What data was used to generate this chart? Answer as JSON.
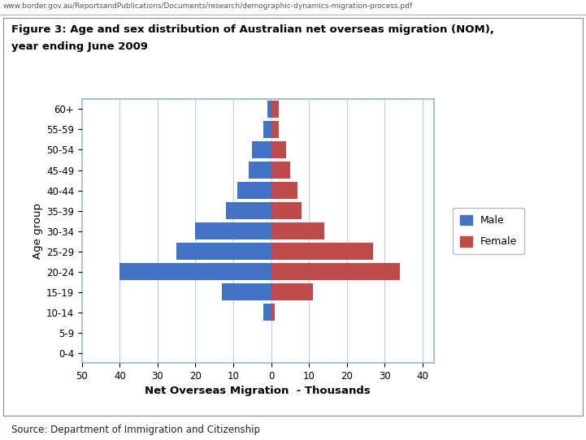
{
  "age_groups": [
    "0-4",
    "5-9",
    "10-14",
    "15-19",
    "20-24",
    "25-29",
    "30-34",
    "35-39",
    "40-44",
    "45-49",
    "50-54",
    "55-59",
    "60+"
  ],
  "male_values": [
    0,
    0,
    -2,
    -13,
    -40,
    -25,
    -20,
    -12,
    -9,
    -6,
    -5,
    -2,
    -1
  ],
  "female_values": [
    0,
    0,
    1,
    11,
    34,
    27,
    14,
    8,
    7,
    5,
    4,
    2,
    2
  ],
  "male_color": "#4472C4",
  "female_color": "#BE4B48",
  "xlabel": "Net Overseas Migration  - Thousands",
  "ylabel": "Age group",
  "xlim_left": -50,
  "xlim_right": 43,
  "xticks": [
    -50,
    -40,
    -30,
    -20,
    -10,
    0,
    10,
    20,
    30,
    40
  ],
  "xtick_labels": [
    "50",
    "40",
    "30",
    "20",
    "10",
    "0",
    "10",
    "20",
    "30",
    "40"
  ],
  "title_line1": "Figure 3: Age and sex distribution of Australian net overseas migration (NOM),",
  "title_line2": "year ending June 2009",
  "url_text": "www.border.gov.au/ReportsandPublications/Documents/research/demographic-dynamics-migration-process.pdf",
  "source_text": "Source: Department of Immigration and Citizenship",
  "legend_male": "Male",
  "legend_female": "Female",
  "bar_height": 0.85,
  "grid_color": "#B8CCE4",
  "chart_bg": "#FFFFFF",
  "outer_bg": "#FFFFFF",
  "chart_border_color": "#95B3D7",
  "figure_width": 7.21,
  "figure_height": 5.42
}
